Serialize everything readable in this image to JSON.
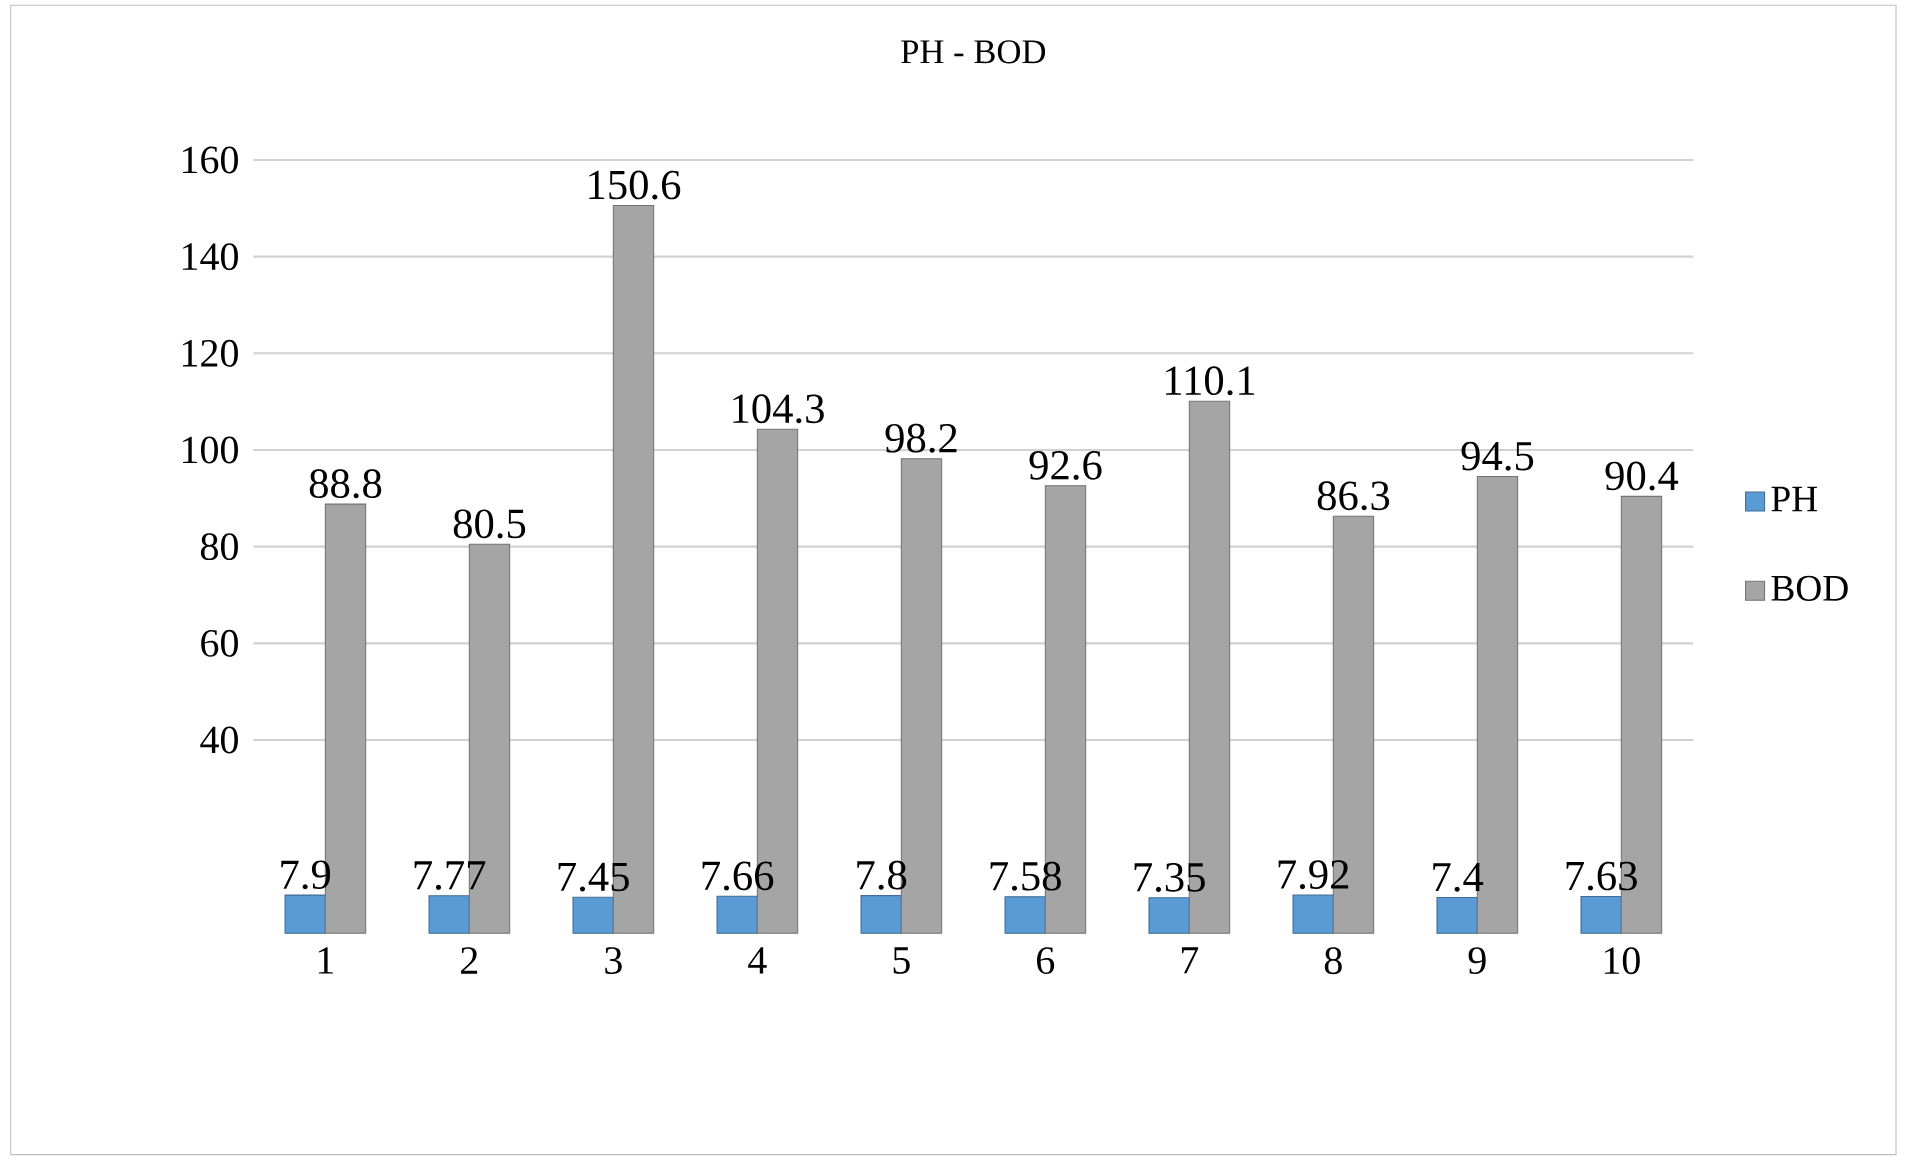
{
  "chart_data": {
    "type": "bar",
    "title": "PH - BOD",
    "categories": [
      "1",
      "2",
      "3",
      "4",
      "5",
      "6",
      "7",
      "8",
      "9",
      "10"
    ],
    "series": [
      {
        "name": "PH",
        "color": "#5b9bd5",
        "values": [
          7.9,
          7.77,
          7.45,
          7.66,
          7.8,
          7.58,
          7.35,
          7.92,
          7.4,
          7.63
        ]
      },
      {
        "name": "BOD",
        "color": "#a5a5a5",
        "values": [
          88.8,
          80.5,
          150.6,
          104.3,
          98.2,
          92.6,
          110.1,
          86.3,
          94.5,
          90.4
        ]
      }
    ],
    "ylim": [
      0,
      160
    ],
    "yticks": [
      40,
      60,
      80,
      100,
      120,
      140,
      160
    ],
    "grid": "y",
    "legend": "right",
    "data_labels": true
  }
}
